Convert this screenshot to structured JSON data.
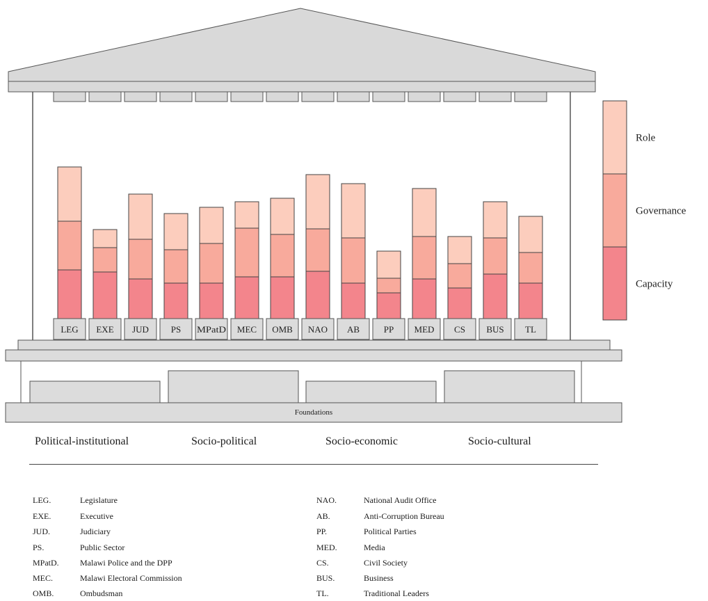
{
  "chart_data": {
    "type": "bar",
    "stacked": true,
    "categories": [
      "LEG",
      "EXE",
      "JUD",
      "PS",
      "MPatD",
      "MEC",
      "OMB",
      "NAO",
      "AB",
      "PP",
      "MED",
      "CS",
      "BUS",
      "TL"
    ],
    "series": [
      {
        "name": "Capacity",
        "color": "#f3858c",
        "values": [
          70,
          67,
          57,
          51,
          51,
          60,
          60,
          68,
          51,
          37,
          57,
          44,
          64,
          51
        ]
      },
      {
        "name": "Governance",
        "color": "#f8aa9c",
        "values": [
          70,
          35,
          57,
          48,
          57,
          70,
          61,
          61,
          65,
          21,
          61,
          35,
          52,
          44
        ]
      },
      {
        "name": "Role",
        "color": "#fccdbd",
        "values": [
          78,
          26,
          65,
          52,
          52,
          38,
          52,
          78,
          78,
          39,
          69,
          39,
          52,
          52
        ]
      }
    ],
    "ylim": [
      0,
      230
    ],
    "legend": {
      "position": "right",
      "order": [
        "Role",
        "Governance",
        "Capacity"
      ]
    },
    "foundations_label": "Foundations"
  },
  "dimensions": [
    "Political-institutional",
    "Socio-political",
    "Socio-economic",
    "Socio-cultural"
  ],
  "abbreviations_left": [
    {
      "abbr": "LEG.",
      "name": "Legislature"
    },
    {
      "abbr": "EXE.",
      "name": "Executive"
    },
    {
      "abbr": "JUD.",
      "name": "Judiciary"
    },
    {
      "abbr": "PS.",
      "name": "Public Sector"
    },
    {
      "abbr": "MPatD.",
      "name": "Malawi Police and the DPP"
    },
    {
      "abbr": "MEC.",
      "name": "Malawi Electoral Commission"
    },
    {
      "abbr": "OMB.",
      "name": "Ombudsman"
    }
  ],
  "abbreviations_right": [
    {
      "abbr": "NAO.",
      "name": "National Audit Office"
    },
    {
      "abbr": "AB.",
      "name": "Anti-Corruption Bureau"
    },
    {
      "abbr": "PP.",
      "name": "Political Parties"
    },
    {
      "abbr": "MED.",
      "name": "Media"
    },
    {
      "abbr": "CS.",
      "name": "Civil Society"
    },
    {
      "abbr": "BUS.",
      "name": "Business"
    },
    {
      "abbr": "TL.",
      "name": "Traditional Leaders"
    }
  ],
  "colors": {
    "structure_fill": "#dcdcdc",
    "structure_stroke": "#555555"
  }
}
